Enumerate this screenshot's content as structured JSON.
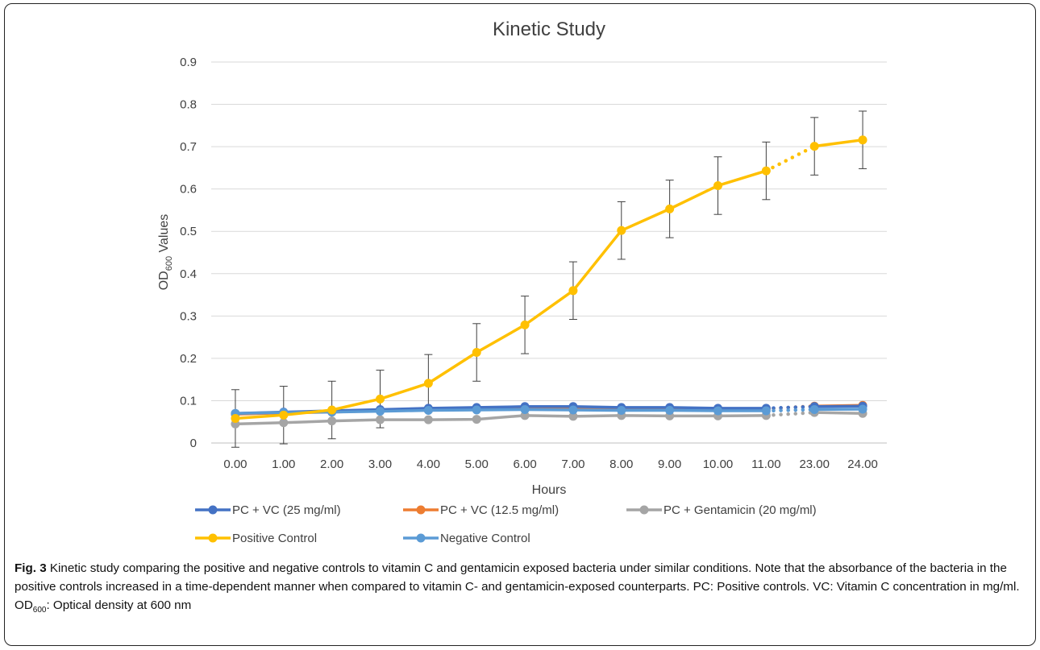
{
  "figure": {
    "label": "Fig. 3",
    "caption_prefix": "Kinetic study comparing the positive and negative controls to vitamin C and gentamicin exposed bacteria under similar conditions. Note that the absorbance of the bacteria in the positive controls increased in a time-dependent manner when compared to vitamin C- and gentamicin-exposed counterparts. PC: Positive controls. VC: Vitamin C concentration in mg/ml. OD",
    "caption_sub": "600",
    "caption_suffix": ": Optical density at 600 nm"
  },
  "chart_data": {
    "type": "line",
    "title": "Kinetic Study",
    "xlabel": "Hours",
    "ylabel_main": "OD",
    "ylabel_sub": "600",
    "ylabel_suffix": " Values",
    "categories": [
      "0.00",
      "1.00",
      "2.00",
      "3.00",
      "4.00",
      "5.00",
      "6.00",
      "7.00",
      "8.00",
      "9.00",
      "10.00",
      "11.00",
      "23.00",
      "24.00"
    ],
    "ylim": [
      0,
      0.9
    ],
    "yticks": [
      "0",
      "0.1",
      "0.2",
      "0.3",
      "0.4",
      "0.5",
      "0.6",
      "0.7",
      "0.8",
      "0.9"
    ],
    "grid": true,
    "legend_position": "bottom",
    "gap_after_index": 11,
    "series": [
      {
        "name": "PC + VC (25 mg/ml)",
        "color": "#4472c4",
        "values": [
          0.07,
          0.073,
          0.076,
          0.079,
          0.082,
          0.084,
          0.086,
          0.086,
          0.084,
          0.084,
          0.082,
          0.082,
          0.086,
          0.087
        ]
      },
      {
        "name": "PC + VC (12.5 mg/ml)",
        "color": "#ed7d31",
        "values": [
          0.068,
          0.071,
          0.073,
          0.076,
          0.079,
          0.081,
          0.083,
          0.083,
          0.082,
          0.082,
          0.081,
          0.081,
          0.087,
          0.089
        ]
      },
      {
        "name": "PC + Gentamicin (20 mg/ml)",
        "color": "#a5a5a5",
        "values": [
          0.045,
          0.048,
          0.052,
          0.055,
          0.055,
          0.056,
          0.065,
          0.063,
          0.065,
          0.064,
          0.064,
          0.065,
          0.072,
          0.07
        ]
      },
      {
        "name": "Positive Control",
        "color": "#ffc000",
        "values": [
          0.058,
          0.066,
          0.078,
          0.104,
          0.141,
          0.214,
          0.279,
          0.36,
          0.502,
          0.553,
          0.608,
          0.643,
          0.701,
          0.716
        ],
        "error": [
          0.068,
          0.068,
          0.068,
          0.068,
          0.068,
          0.068,
          0.068,
          0.068,
          0.068,
          0.068,
          0.068,
          0.068,
          0.068,
          0.068
        ]
      },
      {
        "name": "Negative Control",
        "color": "#5b9bd5",
        "values": [
          0.07,
          0.072,
          0.073,
          0.075,
          0.077,
          0.078,
          0.079,
          0.078,
          0.077,
          0.077,
          0.076,
          0.076,
          0.079,
          0.08
        ]
      }
    ]
  }
}
